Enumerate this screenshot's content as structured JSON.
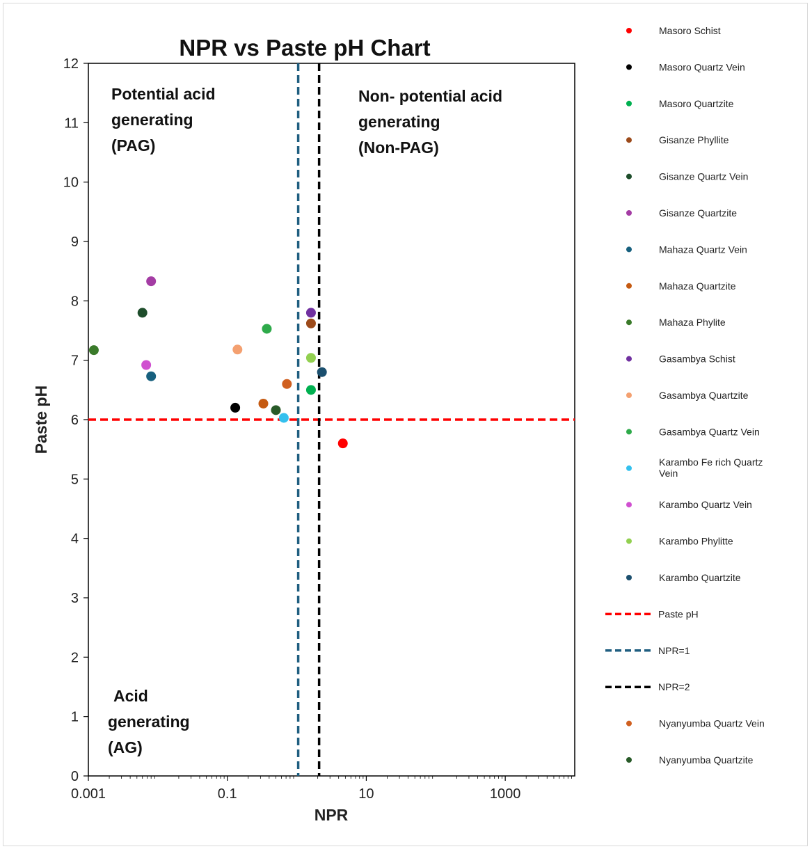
{
  "chart_data": {
    "type": "scatter",
    "title": "NPR vs Paste pH Chart",
    "xlabel": "NPR",
    "ylabel": "Paste pH",
    "x_scale": "log",
    "xlim": [
      0.001,
      10000
    ],
    "ylim": [
      0,
      12
    ],
    "x_ticks": [
      "0.001",
      "0.1",
      "10",
      "1000"
    ],
    "y_ticks": [
      "0",
      "1",
      "2",
      "3",
      "4",
      "5",
      "6",
      "7",
      "8",
      "9",
      "10",
      "11",
      "12"
    ],
    "grid": false,
    "legend_position": "right",
    "regions": [
      {
        "name": "region-pag",
        "lines": [
          "Potential acid",
          "generating",
          "(PAG)"
        ]
      },
      {
        "name": "region-non-pag",
        "lines": [
          "Non- potential acid",
          "generating",
          "(Non-PAG)"
        ]
      },
      {
        "name": "region-ag",
        "lines": [
          "Acid",
          "generating",
          "(AG)"
        ]
      }
    ],
    "series": [
      {
        "name": "Masoro Schist",
        "color": "#ff0000",
        "points": [
          [
            4.6,
            5.6
          ]
        ]
      },
      {
        "name": "Masoro Quartz Vein",
        "color": "#000000",
        "points": [
          [
            0.13,
            6.2
          ]
        ]
      },
      {
        "name": "Masoro Quartzite",
        "color": "#00b050",
        "points": [
          [
            1.6,
            6.5
          ]
        ]
      },
      {
        "name": "Gisanze Phyllite",
        "color": "#9c4a1a",
        "points": [
          [
            1.6,
            7.62
          ]
        ]
      },
      {
        "name": "Gisanze Quartz Vein",
        "color": "#1e4d2b",
        "points": [
          [
            0.006,
            7.8
          ]
        ]
      },
      {
        "name": "Gisanze Quartzite",
        "color": "#a43ca4",
        "points": [
          [
            0.008,
            8.33
          ]
        ]
      },
      {
        "name": "Mahaza Quartz Vein",
        "color": "#17607e",
        "points": [
          [
            0.008,
            6.73
          ]
        ]
      },
      {
        "name": "Mahaza Quartzite",
        "color": "#c55a11",
        "points": [
          [
            0.33,
            6.27
          ]
        ]
      },
      {
        "name": "Mahaza Phylite",
        "color": "#3a7a2a",
        "points": [
          [
            0.0012,
            7.17
          ]
        ]
      },
      {
        "name": "Gasambya Schist",
        "color": "#7030a0",
        "points": [
          [
            1.6,
            7.8
          ]
        ]
      },
      {
        "name": "Gasambya Quartzite",
        "color": "#f4a070",
        "points": [
          [
            0.14,
            7.18
          ]
        ]
      },
      {
        "name": "Gasambya Quartz Vein",
        "color": "#2eaa4a",
        "points": [
          [
            0.37,
            7.53
          ]
        ]
      },
      {
        "name": "Karambo Fe rich Quartz Vein",
        "color": "#33c0ee",
        "points": [
          [
            0.65,
            6.03
          ]
        ]
      },
      {
        "name": "Karambo Quartz Vein",
        "color": "#d050d0",
        "points": [
          [
            0.0068,
            6.92
          ]
        ]
      },
      {
        "name": "Karambo Phylitte",
        "color": "#92d050",
        "points": [
          [
            1.6,
            7.04
          ]
        ]
      },
      {
        "name": "Karambo Quartzite",
        "color": "#1b4f6e",
        "points": [
          [
            2.3,
            6.8
          ]
        ]
      },
      {
        "name": "Nyanyumba Quartz Vein",
        "color": "#d06020",
        "points": [
          [
            0.72,
            6.6
          ]
        ]
      },
      {
        "name": "Nyanyumba Quartzite",
        "color": "#285a28",
        "points": [
          [
            0.5,
            6.16
          ]
        ]
      }
    ],
    "reference_lines": [
      {
        "name": "Paste pH",
        "orientation": "horizontal",
        "value": 6,
        "color": "#ff0000",
        "dash": "dashed"
      },
      {
        "name": "NPR=1",
        "orientation": "vertical",
        "value": 1,
        "color": "#1f5e80",
        "dash": "dashed"
      },
      {
        "name": "NPR=2",
        "orientation": "vertical",
        "value": 2,
        "color": "#000000",
        "dash": "dashed"
      }
    ],
    "legend_order": [
      "Masoro Schist",
      "Masoro Quartz Vein",
      "Masoro Quartzite",
      "Gisanze Phyllite",
      "Gisanze Quartz Vein",
      "Gisanze Quartzite",
      "Mahaza Quartz Vein",
      "Mahaza Quartzite",
      "Mahaza Phylite",
      "Gasambya Schist",
      "Gasambya Quartzite",
      "Gasambya Quartz Vein",
      "Karambo Fe rich Quartz Vein",
      "Karambo Quartz Vein",
      "Karambo Phylitte",
      "Karambo Quartzite",
      "Paste pH",
      "NPR=1",
      "NPR=2",
      "Nyanyumba Quartz Vein",
      "Nyanyumba Quartzite"
    ]
  }
}
